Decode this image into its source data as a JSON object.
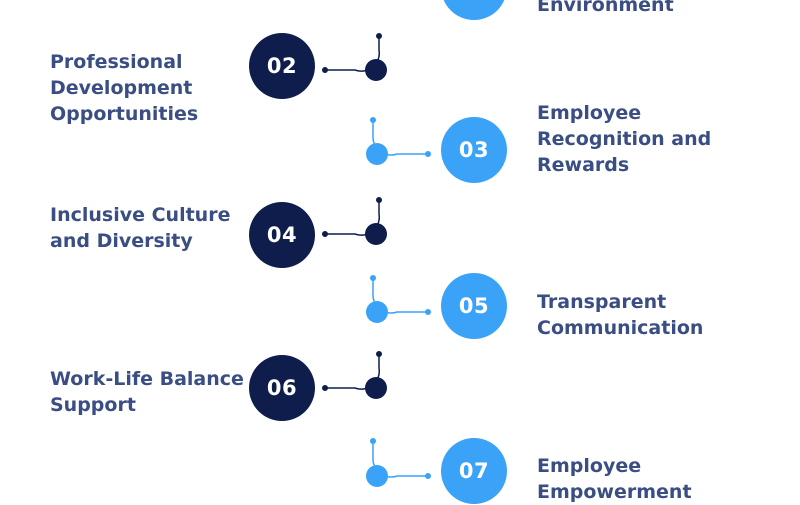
{
  "colors": {
    "dark": "#0f1d4d",
    "light": "#3ba3f7",
    "text": "#3a4e84"
  },
  "steps": [
    {
      "number": "",
      "label": "Environment",
      "side": "right",
      "tone": "light"
    },
    {
      "number": "02",
      "label": "Professional\nDevelopment\nOpportunities",
      "side": "left",
      "tone": "dark"
    },
    {
      "number": "03",
      "label": "Employee\nRecognition and\nRewards",
      "side": "right",
      "tone": "light"
    },
    {
      "number": "04",
      "label": "Inclusive Culture\nand Diversity",
      "side": "left",
      "tone": "dark"
    },
    {
      "number": "05",
      "label": "Transparent\nCommunication",
      "side": "right",
      "tone": "light"
    },
    {
      "number": "06",
      "label": "Work-Life Balance\nSupport",
      "side": "left",
      "tone": "dark"
    },
    {
      "number": "07",
      "label": "Employee\nEmpowerment",
      "side": "right",
      "tone": "light"
    }
  ]
}
